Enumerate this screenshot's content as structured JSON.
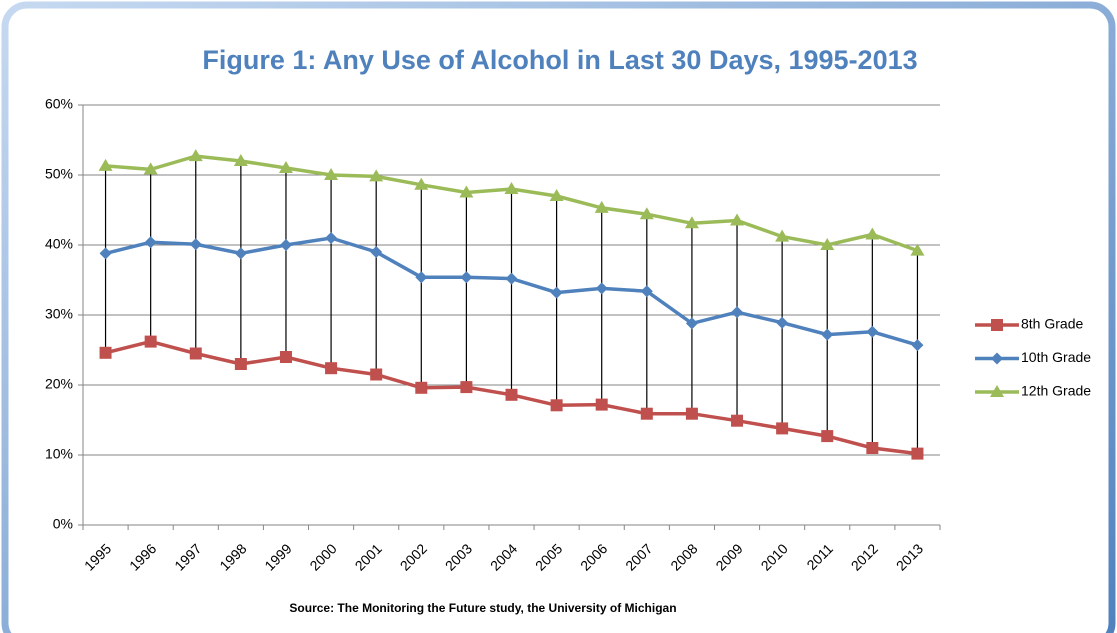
{
  "chart_data": {
    "type": "line",
    "title": "Figure 1: Any Use of Alcohol in Last 30 Days, 1995-2013",
    "source": "Source: The Monitoring the Future study, the University of Michigan",
    "categories": [
      "1995",
      "1996",
      "1997",
      "1998",
      "1999",
      "2000",
      "2001",
      "2002",
      "2003",
      "2004",
      "2005",
      "2006",
      "2007",
      "2008",
      "2009",
      "2010",
      "2011",
      "2012",
      "2013"
    ],
    "series": [
      {
        "name": "8th Grade",
        "color": "#c0504d",
        "marker": "square",
        "values": [
          24.6,
          26.2,
          24.5,
          23.0,
          24.0,
          22.4,
          21.5,
          19.6,
          19.7,
          18.6,
          17.1,
          17.2,
          15.9,
          15.9,
          14.9,
          13.8,
          12.7,
          11.0,
          10.2
        ]
      },
      {
        "name": "10th Grade",
        "color": "#4f81bd",
        "marker": "diamond",
        "values": [
          38.8,
          40.4,
          40.1,
          38.8,
          40.0,
          41.0,
          39.0,
          35.4,
          35.4,
          35.2,
          33.2,
          33.8,
          33.4,
          28.8,
          30.4,
          28.9,
          27.2,
          27.6,
          25.7
        ]
      },
      {
        "name": "12th Grade",
        "color": "#9bbb59",
        "marker": "triangle",
        "values": [
          51.3,
          50.8,
          52.7,
          52.0,
          51.0,
          50.0,
          49.8,
          48.6,
          47.5,
          48.0,
          47.0,
          45.3,
          44.4,
          43.1,
          43.5,
          41.2,
          40.0,
          41.5,
          39.2
        ]
      }
    ],
    "ylim": [
      0,
      60
    ],
    "yticks": [
      {
        "value": 0,
        "label": "0%"
      },
      {
        "value": 10,
        "label": "10%"
      },
      {
        "value": 20,
        "label": "20%"
      },
      {
        "value": 30,
        "label": "30%"
      },
      {
        "value": 40,
        "label": "40%"
      },
      {
        "value": 50,
        "label": "50%"
      },
      {
        "value": 60,
        "label": "60%"
      }
    ],
    "grid": true,
    "high_low_lines": true,
    "legend": "right"
  }
}
